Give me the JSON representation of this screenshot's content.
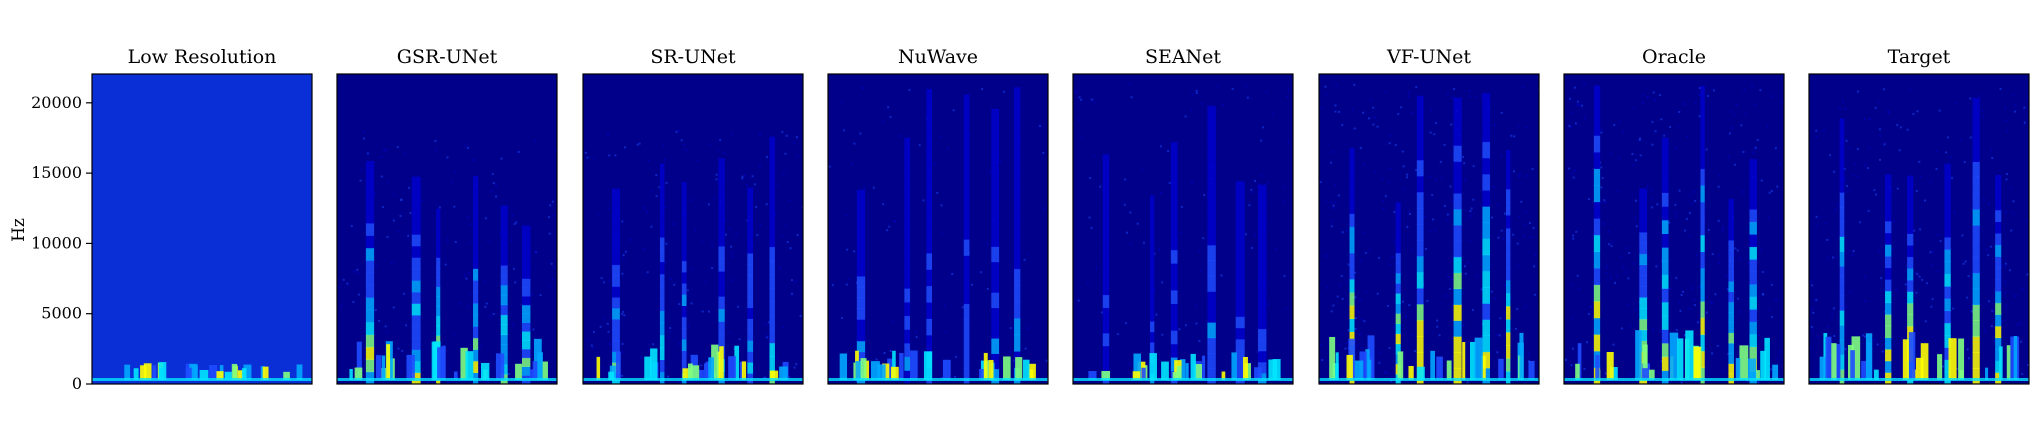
{
  "chart_data": {
    "type": "heatmap",
    "subtype": "spectrogram-grid",
    "ylabel": "Hz",
    "yticks": [
      0,
      5000,
      10000,
      15000,
      20000
    ],
    "ylim": [
      0,
      22050
    ],
    "colormap": [
      "#00008b",
      "#0000cd",
      "#1e4bff",
      "#00a8ff",
      "#00e5ff",
      "#7fff7f",
      "#ffff00"
    ],
    "panels": [
      {
        "title": "Low Resolution",
        "bandwidth": 0.03,
        "strength": 0.2,
        "noise": 0.0
      },
      {
        "title": "GSR-UNet",
        "bandwidth": 0.82,
        "strength": 0.75,
        "noise": 0.15
      },
      {
        "title": "SR-UNet",
        "bandwidth": 0.82,
        "strength": 0.55,
        "noise": 0.2
      },
      {
        "title": "NuWave",
        "bandwidth": 0.97,
        "strength": 0.4,
        "noise": 0.1
      },
      {
        "title": "SEANet",
        "bandwidth": 0.97,
        "strength": 0.35,
        "noise": 0.12
      },
      {
        "title": "VF-UNet",
        "bandwidth": 0.97,
        "strength": 0.9,
        "noise": 0.3
      },
      {
        "title": "Oracle",
        "bandwidth": 0.97,
        "strength": 0.95,
        "noise": 0.3
      },
      {
        "title": "Target",
        "bandwidth": 0.97,
        "strength": 0.9,
        "noise": 0.25
      }
    ]
  }
}
